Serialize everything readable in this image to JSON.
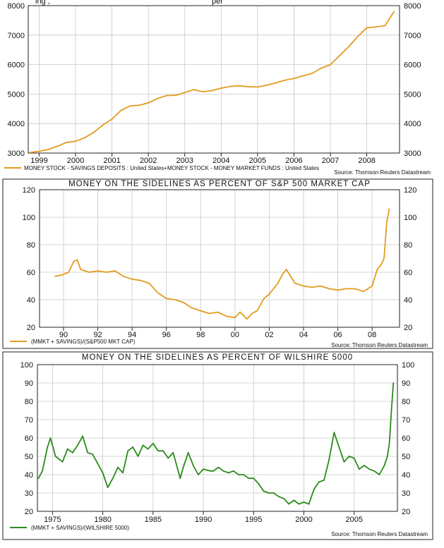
{
  "chart_data": [
    {
      "type": "line",
      "title": "",
      "clipped_header": "ing ,",
      "clipped_header_right": "per",
      "color": "#e39b1f",
      "ylim": [
        3000,
        8000
      ],
      "yticks": [
        3000,
        4000,
        5000,
        6000,
        7000,
        8000
      ],
      "xlim": [
        1998.7,
        2008.9
      ],
      "xticks": [
        1999,
        2000,
        2001,
        2002,
        2003,
        2004,
        2005,
        2006,
        2007,
        2008
      ],
      "xticklabels": [
        "1999",
        "2000",
        "2001",
        "2002",
        "2003",
        "2004",
        "2005",
        "2006",
        "2007",
        "2008"
      ],
      "legend": "MONEY STOCK - SAVINGS DEPOSITS : United States+MONEY STOCK - MONEY MARKET FUNDS : United States",
      "source": "Source: Thomson Reuters Datastream",
      "x": [
        1998.75,
        1999.0,
        1999.25,
        1999.5,
        1999.75,
        2000.0,
        2000.25,
        2000.5,
        2000.75,
        2001.0,
        2001.25,
        2001.5,
        2001.75,
        2002.0,
        2002.25,
        2002.5,
        2002.75,
        2003.0,
        2003.25,
        2003.5,
        2003.75,
        2004.0,
        2004.25,
        2004.5,
        2004.75,
        2005.0,
        2005.25,
        2005.5,
        2005.75,
        2006.0,
        2006.25,
        2006.5,
        2006.75,
        2007.0,
        2007.25,
        2007.5,
        2007.75,
        2008.0,
        2008.25,
        2008.5,
        2008.75
      ],
      "values": [
        3020,
        3060,
        3120,
        3230,
        3360,
        3400,
        3520,
        3700,
        3950,
        4150,
        4450,
        4600,
        4620,
        4700,
        4850,
        4950,
        4960,
        5050,
        5150,
        5080,
        5120,
        5200,
        5260,
        5280,
        5250,
        5240,
        5300,
        5380,
        5470,
        5530,
        5620,
        5700,
        5880,
        6000,
        6300,
        6600,
        6950,
        7250,
        7280,
        7320,
        7800
      ]
    },
    {
      "type": "line",
      "title": "MONEY ON THE SIDELINES AS PERCENT OF S&P 500 MARKET CAP",
      "color": "#e39b1f",
      "ylim": [
        20,
        120
      ],
      "yticks": [
        20,
        40,
        60,
        80,
        100,
        120
      ],
      "xlim": [
        1988.6,
        2009.6
      ],
      "xticks": [
        1990,
        1992,
        1994,
        1996,
        1998,
        2000,
        2002,
        2004,
        2006,
        2008
      ],
      "xticklabels": [
        "90",
        "92",
        "94",
        "96",
        "98",
        "00",
        "02",
        "04",
        "06",
        "08"
      ],
      "legend": "(MMKT + SAVINGS)/(S&P500 MKT CAP)",
      "source": "Source: Thomson Reuters Datastream",
      "x": [
        1989.5,
        1989.9,
        1990.3,
        1990.6,
        1990.8,
        1991.0,
        1991.5,
        1992.0,
        1992.5,
        1993.0,
        1993.5,
        1994.0,
        1994.5,
        1995.0,
        1995.5,
        1996.0,
        1996.5,
        1997.0,
        1997.5,
        1998.0,
        1998.5,
        1999.0,
        1999.5,
        2000.0,
        2000.3,
        2000.7,
        2001.0,
        2001.3,
        2001.7,
        2002.0,
        2002.5,
        2002.8,
        2003.0,
        2003.2,
        2003.5,
        2004.0,
        2004.5,
        2005.0,
        2005.5,
        2006.0,
        2006.5,
        2007.0,
        2007.5,
        2008.0,
        2008.3,
        2008.5,
        2008.7,
        2008.85,
        2009.0
      ],
      "values": [
        57,
        58,
        60,
        68,
        69,
        62,
        60,
        61,
        60,
        61,
        57,
        55,
        54,
        52,
        45,
        41,
        40,
        38,
        34,
        32,
        30,
        31,
        28,
        27,
        31,
        26,
        30,
        32,
        41,
        44,
        52,
        59,
        62,
        58,
        52,
        50,
        49,
        50,
        48,
        47,
        48,
        48,
        46,
        50,
        62,
        65,
        70,
        96,
        106
      ]
    },
    {
      "type": "line",
      "title": "MONEY ON THE SIDELINES AS PERCENT OF WILSHIRE 5000",
      "color": "#2a8c1a",
      "ylim": [
        20,
        100
      ],
      "yticks": [
        20,
        30,
        40,
        50,
        60,
        70,
        80,
        90,
        100
      ],
      "xlim": [
        1973.5,
        2009.3
      ],
      "xticks": [
        1975,
        1980,
        1985,
        1990,
        1995,
        2000,
        2005
      ],
      "xticklabels": [
        "1975",
        "1980",
        "1985",
        "1990",
        "1995",
        "2000",
        "2005"
      ],
      "legend": "(MMKT + SAVINGS)/(WILSHIRE 5000)",
      "source": "Source: Thomson Reuters Datastream",
      "x": [
        1973.6,
        1974.0,
        1974.5,
        1974.8,
        1975.3,
        1976.0,
        1976.5,
        1977.0,
        1977.5,
        1978.0,
        1978.5,
        1979.0,
        1979.5,
        1980.0,
        1980.5,
        1981.0,
        1981.5,
        1982.0,
        1982.5,
        1983.0,
        1983.5,
        1984.0,
        1984.5,
        1985.0,
        1985.5,
        1986.0,
        1986.5,
        1987.0,
        1987.7,
        1988.0,
        1988.5,
        1989.0,
        1989.5,
        1990.0,
        1990.7,
        1991.0,
        1991.5,
        1992.0,
        1992.5,
        1993.0,
        1993.5,
        1994.0,
        1994.5,
        1995.0,
        1995.5,
        1996.0,
        1996.5,
        1997.0,
        1997.5,
        1998.0,
        1998.5,
        1999.0,
        1999.5,
        2000.0,
        2000.5,
        2001.0,
        2001.5,
        2002.0,
        2002.5,
        2003.0,
        2003.5,
        2004.0,
        2004.5,
        2005.0,
        2005.5,
        2006.0,
        2006.5,
        2007.0,
        2007.5,
        2008.0,
        2008.3,
        2008.5,
        2008.7,
        2008.9
      ],
      "values": [
        38,
        42,
        55,
        60,
        50,
        47,
        54,
        52,
        56,
        61,
        52,
        51,
        46,
        41,
        33,
        38,
        44,
        41,
        53,
        55,
        50,
        56,
        54,
        57,
        53,
        53,
        49,
        52,
        38,
        44,
        52,
        45,
        40,
        43,
        42,
        42,
        44,
        42,
        41,
        42,
        40,
        40,
        38,
        38,
        35,
        31,
        30,
        30,
        28,
        27,
        24,
        26,
        24,
        25,
        24,
        32,
        36,
        37,
        48,
        63,
        55,
        47,
        50,
        49,
        43,
        45,
        43,
        42,
        40,
        45,
        50,
        57,
        75,
        90
      ]
    }
  ]
}
